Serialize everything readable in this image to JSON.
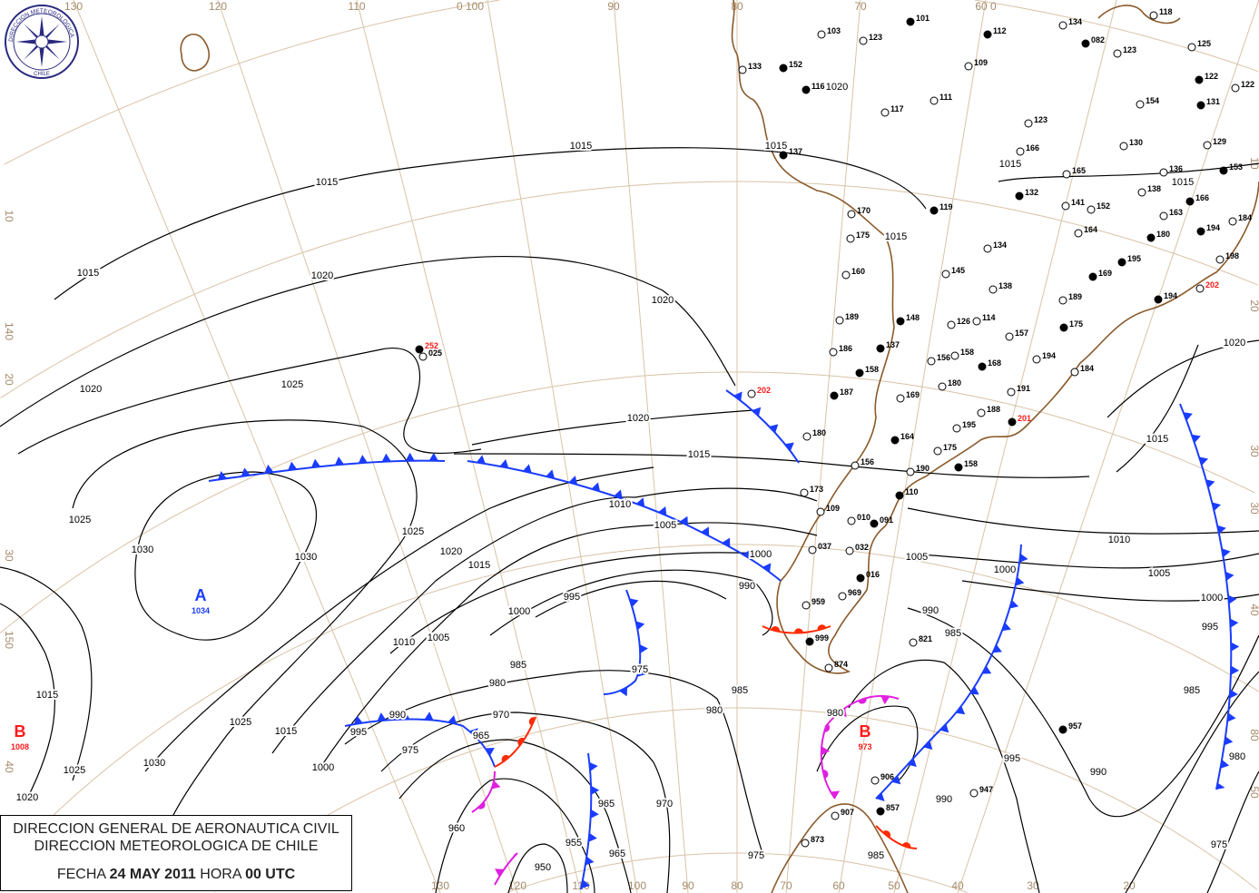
{
  "logo": {
    "text_top": "DIRECCION METEOROLOGICA",
    "text_bottom": "CHILE"
  },
  "title": {
    "line1": "DIRECCION GENERAL DE AERONAUTICA CIVIL",
    "line2": "DIRECCION METEOROLOGICA DE CHILE",
    "fecha_label": "FECHA",
    "date": "24 MAY 2011",
    "hora_label": "HORA",
    "time": "00 UTC"
  },
  "grid_labels": {
    "top": [
      "130",
      "120",
      "110",
      "0 100",
      "90",
      "80",
      "70",
      "60 0"
    ],
    "bottom": [
      "130",
      "120",
      "110",
      "100",
      "90",
      "80",
      "70",
      "60",
      "50",
      "40",
      "30",
      "20"
    ],
    "left": [
      "10",
      "140",
      "20",
      "30",
      "150",
      "40"
    ],
    "right": [
      "10",
      "20",
      "30",
      "30",
      "40",
      "80",
      "50"
    ]
  },
  "pressure_centers": [
    {
      "letter": "A",
      "value": "1034",
      "color": "#1a3cff"
    },
    {
      "letter": "B",
      "value": "1008",
      "color": "#ff1a1a"
    },
    {
      "letter": "B",
      "value": "973",
      "color": "#ff1a1a"
    }
  ],
  "isobar_labels": [
    "1015",
    "1015",
    "1015",
    "1020",
    "1020",
    "1020",
    "1025",
    "1020",
    "1015",
    "1010",
    "1005",
    "1000",
    "990",
    "995",
    "1000",
    "1005",
    "1010",
    "1015",
    "1020",
    "1025",
    "1030",
    "1030",
    "1025",
    "985",
    "980",
    "975",
    "970",
    "990",
    "995",
    "975",
    "965",
    "1025",
    "1015",
    "1000",
    "1030",
    "1025",
    "1020",
    "1015",
    "960",
    "950",
    "955",
    "965",
    "965",
    "970",
    "975",
    "985",
    "980",
    "985",
    "990",
    "995",
    "985",
    "990",
    "1000",
    "1005",
    "1010",
    "1005",
    "1000",
    "995",
    "985",
    "980",
    "975",
    "1015",
    "1020",
    "1015",
    "1015",
    "1015",
    "1015",
    "1020",
    "980",
    "990"
  ],
  "fronts": [
    {
      "type": "cold",
      "color": "#1a3cff"
    },
    {
      "type": "cold",
      "color": "#1a3cff"
    },
    {
      "type": "cold",
      "color": "#1a3cff"
    },
    {
      "type": "cold",
      "color": "#1a3cff"
    },
    {
      "type": "cold",
      "color": "#1a3cff"
    },
    {
      "type": "cold",
      "color": "#1a3cff"
    },
    {
      "type": "cold",
      "color": "#1a3cff"
    },
    {
      "type": "cold",
      "color": "#1a3cff"
    },
    {
      "type": "warm",
      "color": "#ff2a00"
    },
    {
      "type": "warm",
      "color": "#ff2a00"
    },
    {
      "type": "warm",
      "color": "#ff2a00"
    },
    {
      "type": "occluded",
      "color": "#e020e0"
    },
    {
      "type": "occluded",
      "color": "#e020e0"
    },
    {
      "type": "occluded",
      "color": "#e020e0"
    }
  ],
  "stations": [
    "101",
    "103",
    "123",
    "112",
    "134",
    "118",
    "082",
    "123",
    "125",
    "152",
    "133",
    "109",
    "116",
    "117",
    "111",
    "122",
    "122",
    "154",
    "131",
    "123",
    "129",
    "137",
    "130",
    "136",
    "153",
    "166",
    "165",
    "132",
    "141",
    "152",
    "166",
    "138",
    "163",
    "119",
    "170",
    "184",
    "194",
    "175",
    "164",
    "180",
    "134",
    "198",
    "195",
    "160",
    "145",
    "169",
    "138",
    "189",
    "194",
    "202",
    "189",
    "148",
    "126",
    "114",
    "175",
    "157",
    "186",
    "137",
    "158",
    "156",
    "168",
    "194",
    "184",
    "158",
    "180",
    "191",
    "187",
    "169",
    "188",
    "201",
    "195",
    "202",
    "252",
    "025",
    "180",
    "164",
    "175",
    "156",
    "158",
    "190",
    "173",
    "110",
    "109",
    "010",
    "091",
    "037",
    "032",
    "016",
    "969",
    "959",
    "999",
    "874",
    "821",
    "957",
    "947",
    "906",
    "857",
    "907",
    "873"
  ],
  "station_colors": {
    "normal": "#000000",
    "highlight": "#ff1a1a"
  },
  "colors": {
    "coast": "#8b5a2b",
    "grid": "#d8c3a5",
    "isobar": "#000000"
  }
}
